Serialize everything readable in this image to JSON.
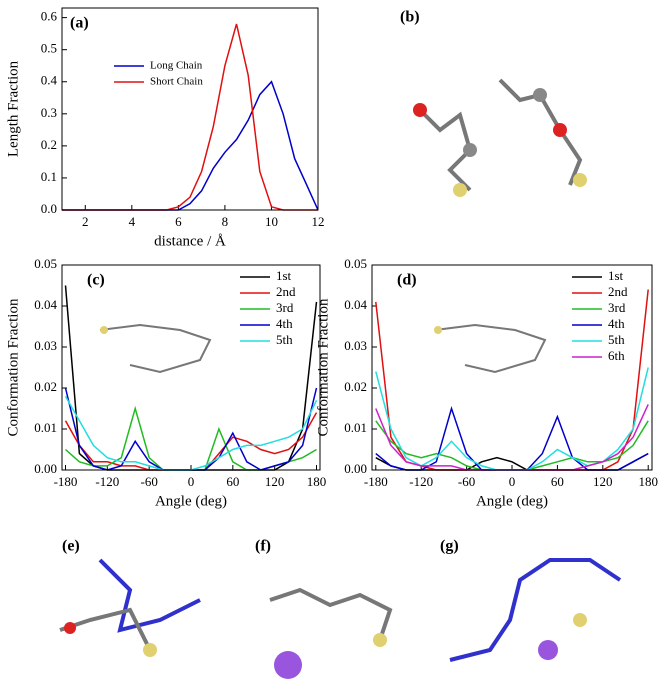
{
  "chart_data": [
    {
      "type": "line",
      "panel_label": "(a)",
      "xlabel": "distance / Å",
      "ylabel": "Length Fraction",
      "legend": "upper left",
      "x": [
        1,
        1.5,
        2,
        2.5,
        3,
        3.5,
        4,
        4.5,
        5,
        5.5,
        6,
        6.5,
        7,
        7.5,
        8,
        8.5,
        9,
        9.5,
        10,
        10.5,
        11,
        11.5,
        12
      ],
      "series": [
        {
          "name": "Long Chain",
          "color": "#0000cc",
          "values": [
            0,
            0,
            0,
            0,
            0,
            0,
            0,
            0,
            0,
            0,
            0,
            0.02,
            0.06,
            0.13,
            0.18,
            0.22,
            0.28,
            0.36,
            0.4,
            0.3,
            0.16,
            0.08,
            0
          ]
        },
        {
          "name": "Short Chain",
          "color": "#e01010",
          "values": [
            0,
            0,
            0,
            0,
            0,
            0,
            0,
            0,
            0,
            0,
            0.01,
            0.04,
            0.12,
            0.26,
            0.45,
            0.58,
            0.42,
            0.12,
            0.01,
            0,
            0,
            0,
            0
          ]
        }
      ],
      "xlim": [
        1,
        12
      ],
      "xticks": [
        2,
        4,
        6,
        8,
        10,
        12
      ],
      "ylim": [
        0,
        0.63
      ],
      "yticks": [
        {
          "value": 0,
          "label": "0.0"
        },
        {
          "value": 0.1,
          "label": "0.1"
        },
        {
          "value": 0.2,
          "label": "0.2"
        },
        {
          "value": 0.3,
          "label": "0.3"
        },
        {
          "value": 0.4,
          "label": "0.4"
        },
        {
          "value": 0.5,
          "label": "0.5"
        },
        {
          "value": 0.6,
          "label": "0.6"
        }
      ]
    },
    {
      "type": "line",
      "panel_label": "(c)",
      "xlabel": "Angle (deg)",
      "ylabel": "Conformation Fraction",
      "legend": "upper right",
      "x": [
        -180,
        -160,
        -140,
        -120,
        -100,
        -80,
        -60,
        -40,
        -20,
        0,
        20,
        40,
        60,
        80,
        100,
        120,
        140,
        160,
        180
      ],
      "series": [
        {
          "name": "1st",
          "color": "#000000",
          "values": [
            0.045,
            0.004,
            0.001,
            0,
            0,
            0,
            0,
            0,
            0,
            0,
            0,
            0,
            0,
            0,
            0,
            0,
            0.002,
            0.01,
            0.041
          ]
        },
        {
          "name": "2nd",
          "color": "#e01010",
          "values": [
            0.012,
            0.006,
            0.002,
            0.002,
            0.001,
            0.001,
            0,
            0,
            0,
            0,
            0,
            0.004,
            0.008,
            0.007,
            0.005,
            0.004,
            0.005,
            0.008,
            0.014
          ]
        },
        {
          "name": "3rd",
          "color": "#22bb22",
          "values": [
            0.005,
            0.002,
            0.001,
            0.001,
            0.003,
            0.015,
            0.003,
            0,
            0,
            0,
            0,
            0.01,
            0.002,
            0,
            0,
            0.001,
            0.002,
            0.003,
            0.005
          ]
        },
        {
          "name": "4th",
          "color": "#0000cc",
          "values": [
            0.02,
            0.006,
            0.001,
            0,
            0.001,
            0.007,
            0.002,
            0,
            0,
            0,
            0,
            0.003,
            0.009,
            0.002,
            0,
            0.001,
            0.002,
            0.006,
            0.02
          ]
        },
        {
          "name": "5th",
          "color": "#22dddd",
          "values": [
            0.018,
            0.012,
            0.006,
            0.003,
            0.002,
            0.002,
            0.001,
            0,
            0,
            0,
            0.001,
            0.003,
            0.005,
            0.006,
            0.006,
            0.007,
            0.008,
            0.01,
            0.017
          ]
        }
      ],
      "xlim": [
        -185,
        185
      ],
      "xticks": [
        -180,
        -120,
        -60,
        0,
        60,
        120,
        180
      ],
      "ylim": [
        0,
        0.05
      ],
      "yticks": [
        {
          "value": 0,
          "label": "0.00"
        },
        {
          "value": 0.01,
          "label": "0.01"
        },
        {
          "value": 0.02,
          "label": "0.02"
        },
        {
          "value": 0.03,
          "label": "0.03"
        },
        {
          "value": 0.04,
          "label": "0.04"
        },
        {
          "value": 0.05,
          "label": "0.05"
        }
      ]
    },
    {
      "type": "line",
      "panel_label": "(d)",
      "xlabel": "Angle (deg)",
      "ylabel": "Conformation Fraction",
      "legend": "upper right",
      "x": [
        -180,
        -160,
        -140,
        -120,
        -100,
        -80,
        -60,
        -40,
        -20,
        0,
        20,
        40,
        60,
        80,
        100,
        120,
        140,
        160,
        180
      ],
      "series": [
        {
          "name": "1st",
          "color": "#000000",
          "values": [
            0.003,
            0.001,
            0,
            0,
            0,
            0,
            0,
            0.002,
            0.003,
            0.002,
            0,
            0,
            0,
            0,
            0,
            0,
            0,
            0.002,
            0.004
          ]
        },
        {
          "name": "2nd",
          "color": "#e01010",
          "values": [
            0.041,
            0.008,
            0.002,
            0.001,
            0,
            0,
            0,
            0,
            0,
            0,
            0,
            0,
            0,
            0,
            0,
            0,
            0.002,
            0.01,
            0.044
          ]
        },
        {
          "name": "3rd",
          "color": "#22bb22",
          "values": [
            0.012,
            0.007,
            0.004,
            0.003,
            0.004,
            0.003,
            0.001,
            0,
            0,
            0,
            0,
            0.001,
            0.002,
            0.003,
            0.002,
            0.002,
            0.003,
            0.006,
            0.012
          ]
        },
        {
          "name": "4th",
          "color": "#0000cc",
          "values": [
            0.004,
            0.001,
            0,
            0,
            0.002,
            0.015,
            0.004,
            0,
            0,
            0,
            0,
            0.004,
            0.013,
            0.003,
            0,
            0,
            0,
            0.002,
            0.004
          ]
        },
        {
          "name": "5th",
          "color": "#22dddd",
          "values": [
            0.024,
            0.01,
            0.003,
            0.001,
            0.003,
            0.007,
            0.003,
            0.001,
            0,
            0,
            0,
            0.002,
            0.005,
            0.003,
            0.001,
            0.002,
            0.005,
            0.01,
            0.025
          ]
        },
        {
          "name": "6th",
          "color": "#cc22cc",
          "values": [
            0.015,
            0.006,
            0.002,
            0.001,
            0.001,
            0.001,
            0,
            0,
            0,
            0,
            0,
            0,
            0,
            0,
            0.001,
            0.002,
            0.004,
            0.008,
            0.016
          ]
        }
      ],
      "xlim": [
        -185,
        185
      ],
      "xticks": [
        -180,
        -120,
        -60,
        0,
        60,
        120,
        180
      ],
      "ylim": [
        0,
        0.05
      ],
      "yticks": [
        {
          "value": 0,
          "label": "0.00"
        },
        {
          "value": 0.01,
          "label": "0.01"
        },
        {
          "value": 0.02,
          "label": "0.02"
        },
        {
          "value": 0.03,
          "label": "0.03"
        },
        {
          "value": 0.04,
          "label": "0.04"
        },
        {
          "value": 0.05,
          "label": "0.05"
        }
      ]
    }
  ],
  "image_panels": [
    "(b)",
    "(e)",
    "(f)",
    "(g)"
  ]
}
